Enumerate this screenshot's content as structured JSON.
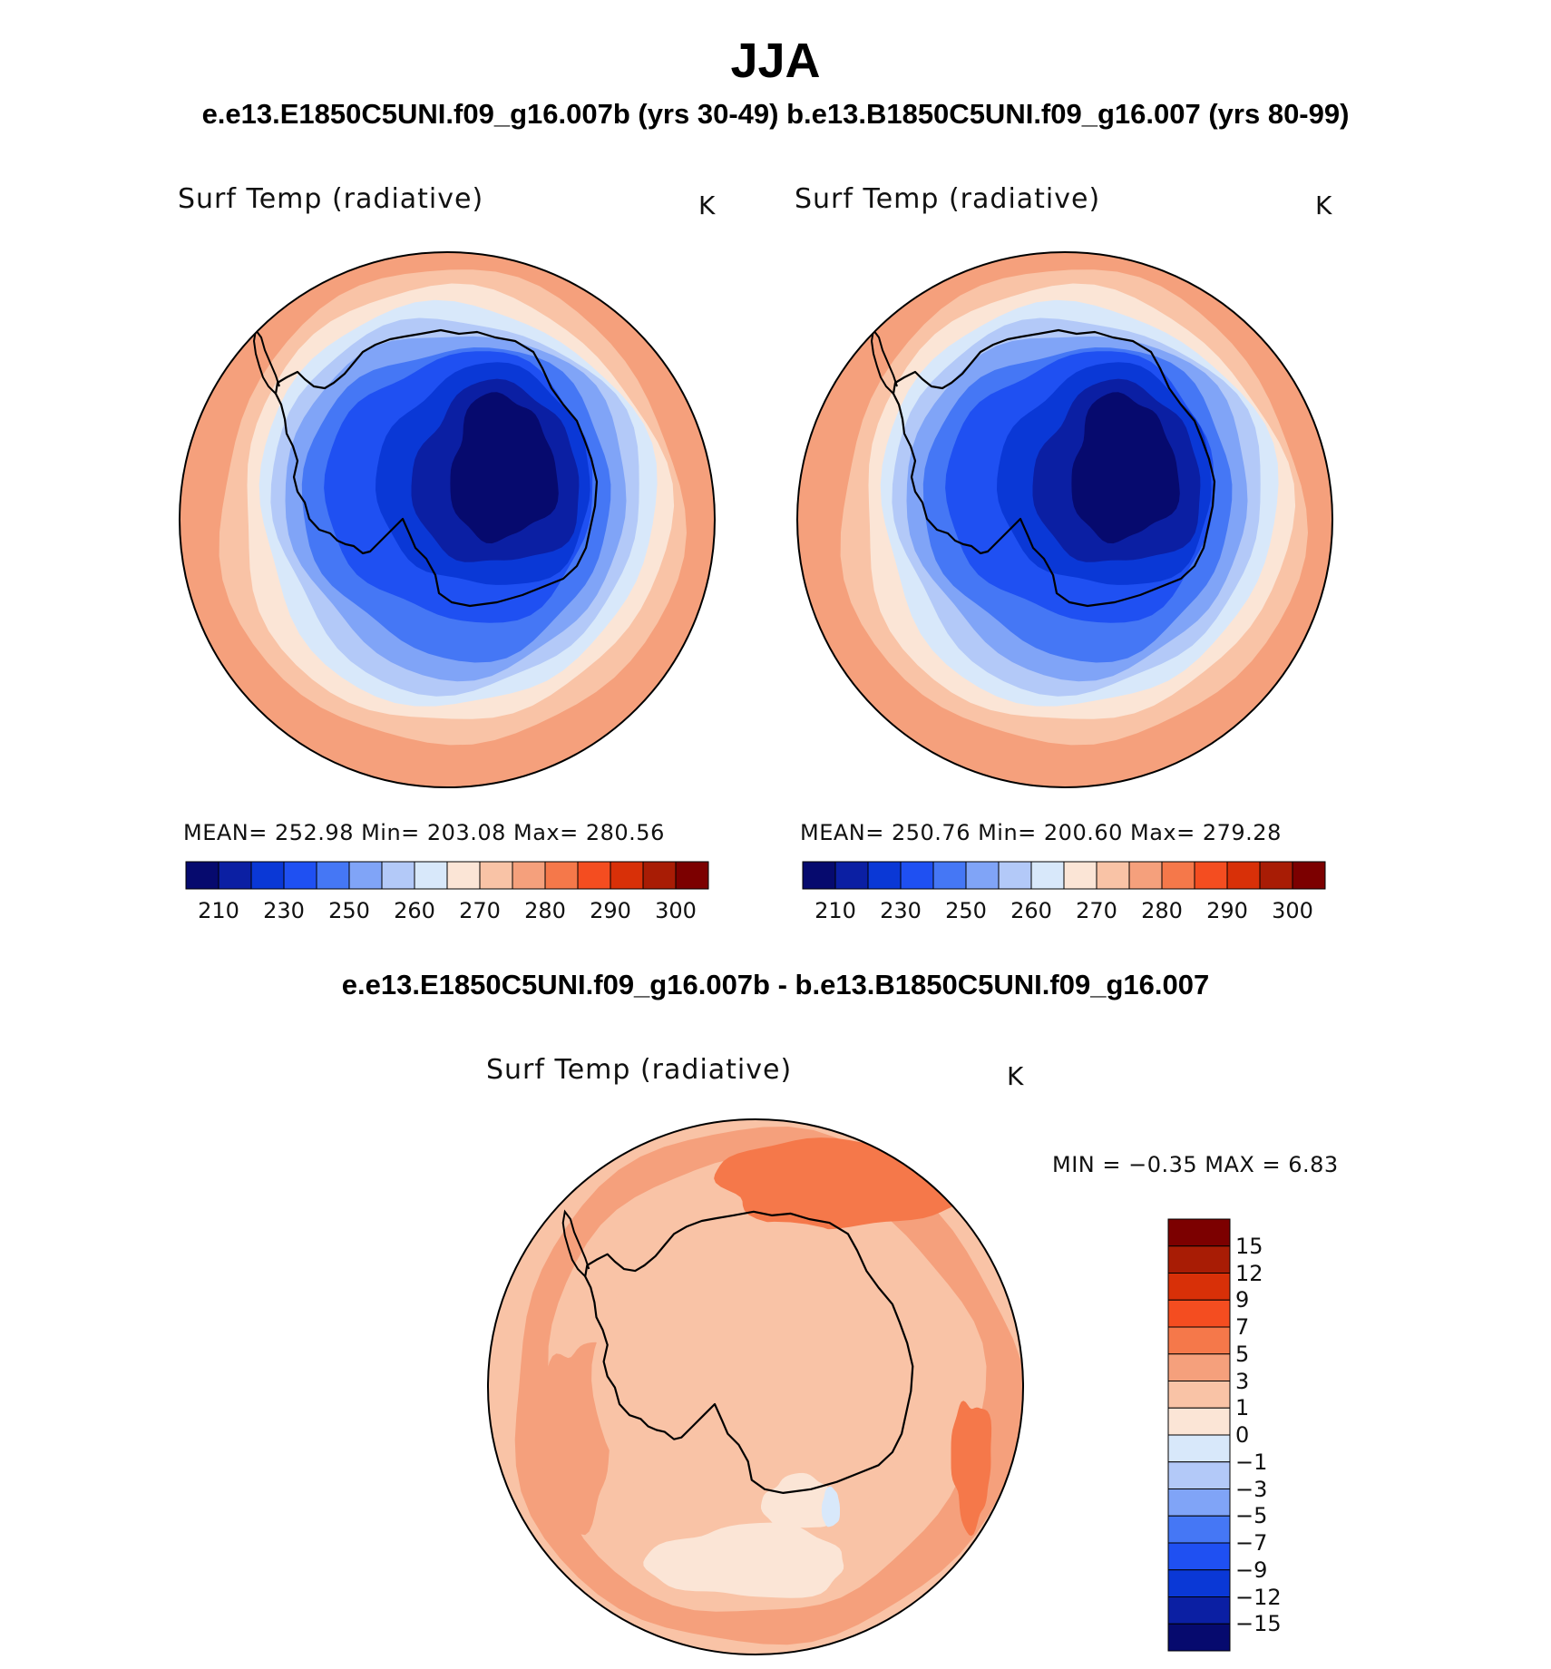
{
  "figure": {
    "title": "JJA",
    "subtitle": "e.e13.E1850C5UNI.f09_g16.007b (yrs 30-49)  b.e13.B1850C5UNI.f09_g16.007 (yrs 80-99)",
    "diff_subtitle": "e.e13.E1850C5UNI.f09_g16.007b - b.e13.B1850C5UNI.f09_g16.007"
  },
  "panels": [
    {
      "title": "Surf Temp (radiative)",
      "units": "K",
      "stats": "MEAN=  252.98   Min=  203.08   Max=  280.56"
    },
    {
      "title": "Surf Temp (radiative)",
      "units": "K",
      "stats": "MEAN=  250.76   Min=  200.60   Max=  279.28"
    },
    {
      "title": "Surf Temp (radiative)",
      "units": "K",
      "stats": "MIN =    −0.35  MAX =     6.83"
    }
  ],
  "chart_data": [
    {
      "type": "heatmap",
      "projection": "south-polar-stereographic",
      "title": "Surf Temp (radiative)",
      "units": "K",
      "mean": 252.98,
      "min": 203.08,
      "max": 280.56,
      "colorbar": {
        "orientation": "horizontal",
        "levels": [
          "210",
          "230",
          "250",
          "260",
          "270",
          "280",
          "290",
          "300"
        ],
        "colors": [
          "#060a6e",
          "#0b1fa3",
          "#0a38d6",
          "#1f50f2",
          "#4577f5",
          "#80a4f7",
          "#b3c9f8",
          "#d8e8fa",
          "#fbe5d6",
          "#f9c3a6",
          "#f5a07c",
          "#f5784a",
          "#f44d20",
          "#d83008",
          "#a81c05",
          "#7c0000"
        ]
      },
      "regions": [
        {
          "name": "outer ocean",
          "value_range": [
            270,
            280
          ]
        },
        {
          "name": "sea ice",
          "value_range": [
            240,
            265
          ]
        },
        {
          "name": "antarctic interior",
          "value_range": [
            203,
            220
          ]
        }
      ]
    },
    {
      "type": "heatmap",
      "projection": "south-polar-stereographic",
      "title": "Surf Temp (radiative)",
      "units": "K",
      "mean": 250.76,
      "min": 200.6,
      "max": 279.28,
      "colorbar": {
        "orientation": "horizontal",
        "levels": [
          "210",
          "230",
          "250",
          "260",
          "270",
          "280",
          "290",
          "300"
        ],
        "colors": [
          "#060a6e",
          "#0b1fa3",
          "#0a38d6",
          "#1f50f2",
          "#4577f5",
          "#80a4f7",
          "#b3c9f8",
          "#d8e8fa",
          "#fbe5d6",
          "#f9c3a6",
          "#f5a07c",
          "#f5784a",
          "#f44d20",
          "#d83008",
          "#a81c05",
          "#7c0000"
        ]
      },
      "regions": [
        {
          "name": "outer ocean",
          "value_range": [
            270,
            279
          ]
        },
        {
          "name": "sea ice",
          "value_range": [
            238,
            262
          ]
        },
        {
          "name": "antarctic interior",
          "value_range": [
            200,
            218
          ]
        }
      ]
    },
    {
      "type": "heatmap",
      "projection": "south-polar-stereographic",
      "title": "Surf Temp (radiative)",
      "units": "K",
      "min": -0.35,
      "max": 6.83,
      "colorbar": {
        "orientation": "vertical",
        "levels": [
          "15",
          "12",
          "9",
          "7",
          "5",
          "3",
          "1",
          "0",
          "−1",
          "−3",
          "−5",
          "−7",
          "−9",
          "−12",
          "−15"
        ],
        "colors": [
          "#7c0000",
          "#a81c05",
          "#d83008",
          "#f44d20",
          "#f5784a",
          "#f5a07c",
          "#f9c3a6",
          "#fbe5d6",
          "#d8e8fa",
          "#b3c9f8",
          "#80a4f7",
          "#4577f5",
          "#1f50f2",
          "#0a38d6",
          "#0b1fa3",
          "#060a6e"
        ]
      },
      "regions": [
        {
          "name": "antarctica",
          "value_range": [
            1,
            3
          ]
        },
        {
          "name": "ocean bands",
          "value_range": [
            3,
            5
          ]
        },
        {
          "name": "warm patches",
          "value_range": [
            5,
            7
          ]
        },
        {
          "name": "small cooling",
          "value_range": [
            -1,
            0
          ]
        }
      ]
    }
  ]
}
